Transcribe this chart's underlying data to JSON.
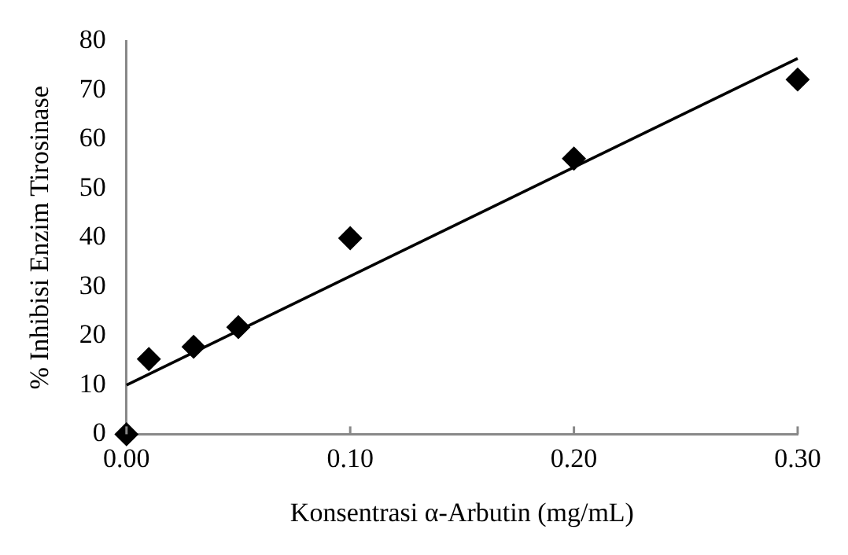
{
  "chart_data": {
    "type": "scatter",
    "xlabel": "Konsentrasi α-Arbutin (mg/mL)",
    "ylabel": "% Inhibisi Enzim Tirosinase",
    "xlim": [
      0,
      0.3
    ],
    "xticks": [
      {
        "value": 0,
        "label": "0.00"
      },
      {
        "value": 0.1,
        "label": "0.10"
      },
      {
        "value": 0.2,
        "label": "0.20"
      },
      {
        "value": 0.3,
        "label": "0.30"
      }
    ],
    "ylim": [
      0,
      80
    ],
    "yticks": [
      0,
      10,
      20,
      30,
      40,
      50,
      60,
      70,
      80
    ],
    "grid": false,
    "legend": false,
    "series": [
      {
        "type": "scatter",
        "marker": "diamond",
        "color": "#000000",
        "x": [
          0,
          0.01,
          0.03,
          0.05,
          0.1,
          0.2,
          0.3
        ],
        "values": [
          0,
          15.3,
          17.8,
          21.8,
          39.9,
          56.1,
          72.2
        ]
      },
      {
        "type": "line",
        "color": "#000000",
        "x": [
          0,
          0.3
        ],
        "values": [
          10,
          76.5
        ],
        "line_style": "solid",
        "marker": "none"
      }
    ]
  }
}
